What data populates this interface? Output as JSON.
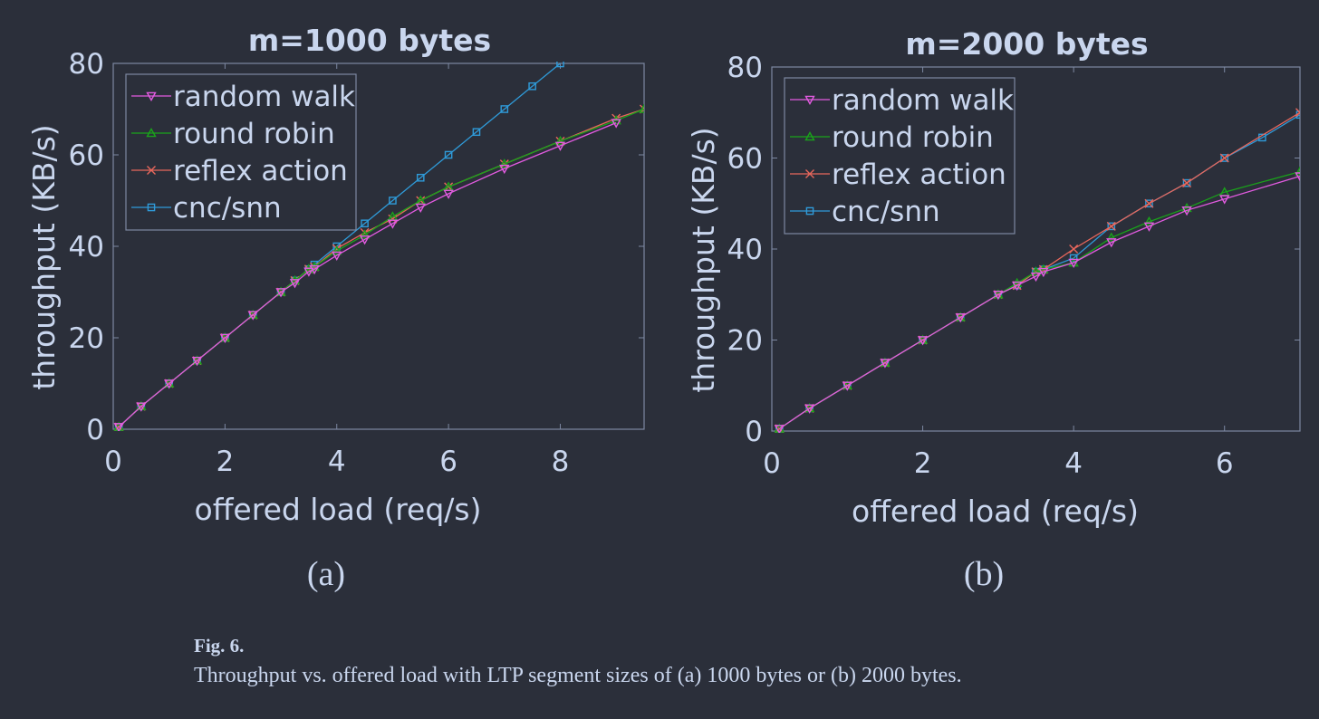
{
  "panel_labels": [
    "(a)",
    "(b)"
  ],
  "caption": {
    "label": "Fig. 6.",
    "text": "Throughput vs. offered load with LTP segment sizes of (a) 1000 bytes or (b) 2000 bytes."
  },
  "colors": {
    "background": "#2b2f3a",
    "axis": "#7d88a2",
    "text": "#c9d6ee",
    "random_walk": "#e25be0",
    "round_robin": "#1aa31a",
    "reflex_action": "#e8675c",
    "cnc_snn": "#2f9bd9"
  },
  "chart_data": [
    {
      "type": "line",
      "title": "m=1000 bytes",
      "xlabel": "offered load (req/s)",
      "ylabel": "throughput (KB/s)",
      "xlim": [
        0,
        9.5
      ],
      "ylim": [
        0,
        80
      ],
      "xticks": [
        0,
        2,
        4,
        6,
        8
      ],
      "yticks": [
        0,
        20,
        40,
        60,
        80
      ],
      "legend_position": "top-left",
      "series": [
        {
          "name": "random walk",
          "marker": "triangle-down",
          "color": "#e25be0",
          "x": [
            0.1,
            0.5,
            1,
            1.5,
            2,
            2.5,
            3,
            3.25,
            3.5,
            3.6,
            4,
            4.5,
            5,
            5.5,
            6,
            7,
            8,
            9
          ],
          "y": [
            0.5,
            5,
            10,
            15,
            20,
            25,
            30,
            32,
            34.5,
            35,
            38,
            41.5,
            45,
            48.5,
            51.5,
            57,
            62,
            67
          ]
        },
        {
          "name": "round robin",
          "marker": "triangle-up",
          "color": "#1aa31a",
          "x": [
            0.1,
            0.5,
            1,
            1.5,
            2,
            2.5,
            3,
            3.25,
            3.5,
            3.6,
            4,
            4.5,
            5,
            5.5,
            6,
            7,
            8,
            9,
            9.5
          ],
          "y": [
            0.5,
            5,
            10,
            15,
            20,
            25,
            30,
            32.5,
            35,
            35.5,
            39,
            42.5,
            46.5,
            50,
            53,
            58,
            63,
            67.5,
            70
          ]
        },
        {
          "name": "reflex action",
          "marker": "x",
          "color": "#e8675c",
          "x": [
            0.1,
            0.5,
            1,
            1.5,
            2,
            2.5,
            3,
            3.25,
            3.5,
            3.6,
            4,
            4.5,
            5,
            5.5,
            6,
            7,
            8,
            9,
            9.5
          ],
          "y": [
            0.5,
            5,
            10,
            15,
            20,
            25,
            30,
            32.5,
            35,
            35.5,
            39.5,
            43,
            46,
            50,
            53,
            58,
            63,
            68,
            70
          ]
        },
        {
          "name": "cnc/snn",
          "marker": "square",
          "color": "#2f9bd9",
          "x": [
            0.1,
            0.5,
            1,
            1.5,
            2,
            2.5,
            3,
            3.25,
            3.5,
            3.6,
            4,
            4.5,
            5,
            5.5,
            6,
            6.5,
            7,
            7.5,
            8
          ],
          "y": [
            0.5,
            5,
            10,
            15,
            20,
            25,
            30,
            32.5,
            35,
            36,
            40,
            45,
            50,
            55,
            60,
            65,
            70,
            75,
            80
          ]
        }
      ]
    },
    {
      "type": "line",
      "title": "m=2000 bytes",
      "xlabel": "offered load (req/s)",
      "ylabel": "throughput (KB/s)",
      "xlim": [
        0,
        7
      ],
      "ylim": [
        0,
        80
      ],
      "xticks": [
        0,
        2,
        4,
        6
      ],
      "yticks": [
        0,
        20,
        40,
        60,
        80
      ],
      "legend_position": "top-left",
      "series": [
        {
          "name": "random walk",
          "marker": "triangle-down",
          "color": "#e25be0",
          "x": [
            0.1,
            0.5,
            1,
            1.5,
            2,
            2.5,
            3,
            3.25,
            3.5,
            3.6,
            4,
            4.5,
            5,
            5.5,
            6,
            7
          ],
          "y": [
            0.5,
            5,
            10,
            15,
            20,
            25,
            30,
            32,
            34,
            35,
            37,
            41.5,
            45,
            48.5,
            51,
            56
          ]
        },
        {
          "name": "round robin",
          "marker": "triangle-up",
          "color": "#1aa31a",
          "x": [
            0.1,
            0.5,
            1,
            1.5,
            2,
            2.5,
            3,
            3.25,
            3.5,
            3.6,
            4,
            4.5,
            5,
            5.5,
            6,
            7
          ],
          "y": [
            0.5,
            5,
            10,
            15,
            20,
            25,
            30,
            32.5,
            35,
            35.5,
            37,
            42.5,
            46,
            49,
            52.5,
            57
          ]
        },
        {
          "name": "reflex action",
          "marker": "x",
          "color": "#e8675c",
          "x": [
            0.1,
            0.5,
            1,
            1.5,
            2,
            2.5,
            3,
            3.25,
            3.5,
            3.6,
            4,
            4.5,
            5,
            5.5,
            6,
            7
          ],
          "y": [
            0.5,
            5,
            10,
            15,
            20,
            25,
            30,
            32,
            35,
            35.5,
            40,
            45,
            50,
            54.5,
            60,
            70
          ]
        },
        {
          "name": "cnc/snn",
          "marker": "square",
          "color": "#2f9bd9",
          "x": [
            0.1,
            0.5,
            1,
            1.5,
            2,
            2.5,
            3,
            3.25,
            3.5,
            3.6,
            4,
            4.5,
            5,
            5.5,
            6,
            6.5,
            7
          ],
          "y": [
            0.5,
            5,
            10,
            15,
            20,
            25,
            30,
            32,
            35,
            35.5,
            38,
            45,
            50,
            54.5,
            60,
            64.5,
            69.5
          ]
        }
      ]
    }
  ]
}
